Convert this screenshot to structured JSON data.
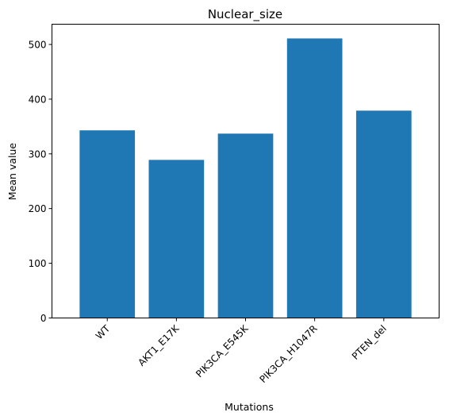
{
  "chart_data": {
    "type": "bar",
    "title": "Nuclear_size",
    "xlabel": "Mutations",
    "ylabel": "Mean value",
    "categories": [
      "WT",
      "AKT1_E17K",
      "PIK3CA_E545K",
      "PIK3CA_H1047R",
      "PTEN_del"
    ],
    "values": [
      343,
      289,
      337,
      511,
      379
    ],
    "ylim": [
      0,
      537
    ],
    "yticks": [
      0,
      100,
      200,
      300,
      400,
      500
    ],
    "bar_color": "#1f77b4",
    "grid": false,
    "legend": "none"
  }
}
